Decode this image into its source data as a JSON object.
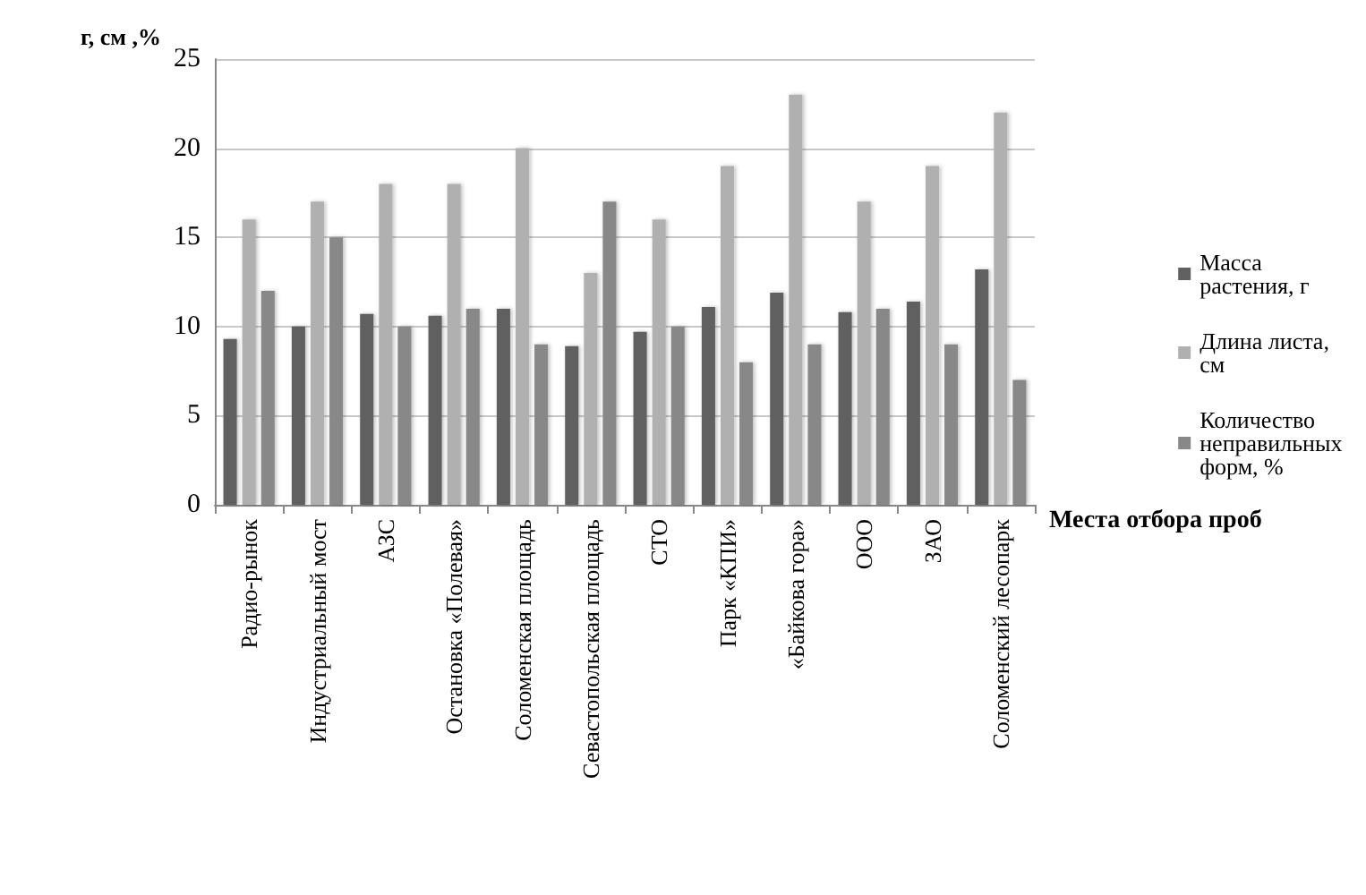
{
  "chart_data": {
    "type": "bar",
    "ylabel": "г, см ,%",
    "xlabel": "Места отбора проб",
    "categories": [
      "Радио-рынок",
      "Индустриальный мост",
      "АЗС",
      "Остановка «Полевая»",
      "Соломенская площадь",
      "Севастопольская площадь",
      "СТО",
      "Парк «КПИ»",
      "«Байкова гора»",
      "ООО",
      "ЗАО",
      "Соломенский лесопарк"
    ],
    "series": [
      {
        "name": "Масса растения, г",
        "color": "#606060",
        "values": [
          9.3,
          10,
          10.7,
          10.6,
          11,
          8.9,
          9.7,
          11.1,
          11.9,
          10.8,
          11.4,
          13.2
        ]
      },
      {
        "name": "Длина листа, см",
        "color": "#b0b0b0",
        "values": [
          16,
          17,
          18,
          18,
          20,
          13,
          16,
          19,
          23,
          17,
          19,
          22
        ]
      },
      {
        "name": "Количество неправильных форм, %",
        "color": "#888888",
        "values": [
          12,
          15,
          10,
          11,
          9,
          17,
          10,
          8,
          9,
          11,
          9,
          7
        ]
      }
    ],
    "ylim": [
      0,
      25
    ],
    "yticks": [
      0,
      5,
      10,
      15,
      20,
      25
    ],
    "grid": "y",
    "legend": "right"
  }
}
